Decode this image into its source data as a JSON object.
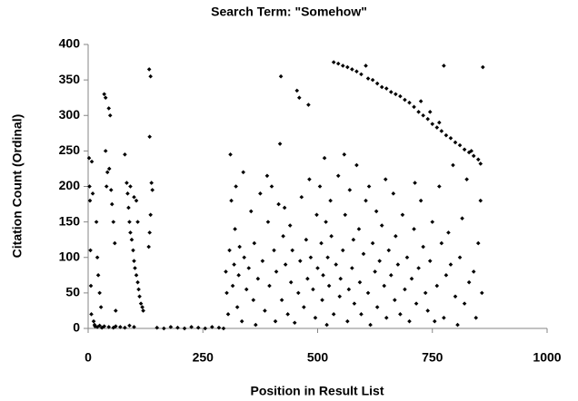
{
  "chart_data": {
    "type": "scatter",
    "title": "Search Term: \"Somehow\"",
    "x_label": "Position in Result List",
    "y_label": "Citation Count (Ordinal)",
    "color": "#000000",
    "xlim": [
      0,
      1000
    ],
    "xticks": [
      0,
      250,
      500,
      750,
      1000
    ],
    "ylim": [
      0,
      400
    ],
    "yticks": [
      0,
      50,
      100,
      150,
      200,
      250,
      300,
      350,
      400
    ],
    "x": [
      2,
      3,
      4,
      5,
      6,
      7,
      8,
      10,
      12,
      14,
      15,
      20,
      25,
      30,
      35,
      45,
      55,
      60,
      70,
      80,
      90,
      100,
      22,
      25,
      28,
      18,
      20,
      35,
      38,
      45,
      48,
      38,
      42,
      46,
      50,
      52,
      55,
      58,
      40,
      60,
      80,
      84,
      86,
      88,
      90,
      92,
      95,
      98,
      100,
      102,
      105,
      108,
      110,
      112,
      115,
      118,
      120,
      92,
      100,
      105,
      108,
      133,
      136,
      134,
      138,
      140,
      136,
      134,
      132,
      150,
      165,
      180,
      195,
      210,
      225,
      240,
      255,
      270,
      285,
      295,
      300,
      302,
      305,
      308,
      310,
      312,
      315,
      318,
      320,
      322,
      325,
      328,
      330,
      335,
      338,
      340,
      345,
      350,
      355,
      360,
      362,
      365,
      370,
      375,
      380,
      385,
      390,
      392,
      395,
      400,
      405,
      408,
      410,
      415,
      418,
      420,
      422,
      425,
      428,
      430,
      435,
      440,
      442,
      445,
      450,
      455,
      458,
      460,
      462,
      465,
      470,
      475,
      478,
      480,
      482,
      485,
      490,
      495,
      498,
      500,
      505,
      508,
      510,
      512,
      515,
      518,
      520,
      522,
      525,
      528,
      530,
      535,
      540,
      545,
      548,
      550,
      555,
      558,
      560,
      565,
      568,
      570,
      575,
      578,
      580,
      585,
      590,
      592,
      595,
      600,
      605,
      610,
      612,
      615,
      620,
      625,
      628,
      630,
      635,
      640,
      645,
      648,
      650,
      655,
      660,
      665,
      668,
      670,
      675,
      680,
      685,
      690,
      695,
      700,
      705,
      710,
      712,
      715,
      720,
      725,
      730,
      735,
      740,
      745,
      750,
      755,
      760,
      765,
      770,
      775,
      780,
      785,
      790,
      795,
      800,
      805,
      810,
      815,
      820,
      825,
      830,
      835,
      840,
      845,
      850,
      855,
      858,
      535,
      545,
      555,
      565,
      575,
      585,
      595,
      605,
      610,
      620,
      630,
      640,
      650,
      660,
      670,
      680,
      690,
      700,
      710,
      720,
      730,
      740,
      750,
      760,
      770,
      775,
      780,
      790,
      800,
      810,
      820,
      830,
      840,
      850,
      855,
      860,
      765,
      745,
      725
    ],
    "values": [
      240,
      200,
      180,
      110,
      60,
      20,
      235,
      190,
      10,
      5,
      3,
      2,
      4,
      1,
      3,
      2,
      1,
      3,
      2,
      1,
      4,
      2,
      75,
      50,
      30,
      150,
      100,
      330,
      325,
      310,
      300,
      250,
      220,
      225,
      195,
      175,
      150,
      120,
      200,
      25,
      245,
      205,
      190,
      170,
      150,
      135,
      125,
      110,
      95,
      85,
      75,
      65,
      55,
      45,
      35,
      30,
      25,
      200,
      185,
      180,
      150,
      365,
      355,
      270,
      205,
      195,
      160,
      135,
      115,
      1,
      0,
      2,
      1,
      0,
      2,
      1,
      0,
      2,
      1,
      0,
      80,
      50,
      20,
      110,
      245,
      180,
      60,
      90,
      140,
      200,
      30,
      75,
      115,
      10,
      220,
      100,
      55,
      85,
      165,
      40,
      120,
      5,
      70,
      190,
      95,
      25,
      215,
      150,
      60,
      200,
      110,
      10,
      80,
      175,
      260,
      355,
      40,
      130,
      170,
      90,
      20,
      145,
      65,
      110,
      8,
      335,
      50,
      325,
      95,
      185,
      30,
      125,
      70,
      315,
      210,
      100,
      55,
      15,
      160,
      85,
      200,
      120,
      40,
      75,
      240,
      150,
      5,
      100,
      60,
      180,
      130,
      20,
      90,
      215,
      45,
      70,
      110,
      245,
      160,
      10,
      55,
      195,
      85,
      125,
      35,
      230,
      140,
      65,
      20,
      105,
      180,
      50,
      200,
      5,
      120,
      80,
      165,
      30,
      95,
      145,
      60,
      210,
      15,
      110,
      75,
      190,
      40,
      130,
      90,
      20,
      160,
      55,
      100,
      10,
      70,
      140,
      205,
      35,
      85,
      180,
      115,
      50,
      25,
      95,
      150,
      10,
      60,
      200,
      120,
      15,
      75,
      135,
      90,
      230,
      45,
      5,
      100,
      155,
      35,
      210,
      65,
      250,
      80,
      15,
      120,
      180,
      50,
      375,
      373,
      370,
      368,
      365,
      362,
      358,
      370,
      352,
      350,
      345,
      340,
      338,
      333,
      330,
      327,
      322,
      318,
      312,
      305,
      300,
      295,
      288,
      283,
      278,
      370,
      272,
      268,
      262,
      258,
      252,
      248,
      243,
      238,
      232,
      368,
      290,
      305,
      320
    ]
  }
}
